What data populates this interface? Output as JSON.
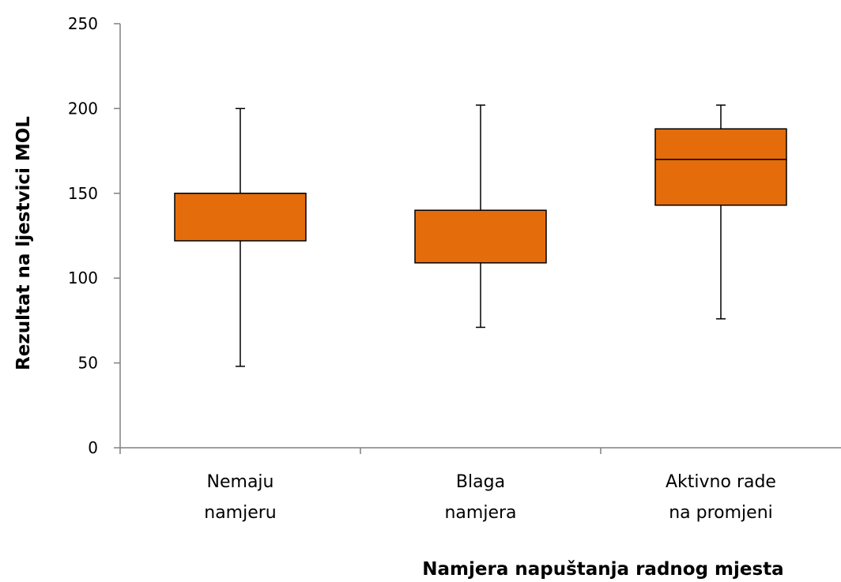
{
  "chart_data": {
    "type": "boxplot",
    "xlabel": "Namjera napuštanja radnog mjesta",
    "ylabel": "Rezultat na ljestvici MOL",
    "ylim": [
      0,
      250
    ],
    "yticks": [
      0,
      50,
      100,
      150,
      200,
      250
    ],
    "grid": false,
    "legend": "none",
    "box_color": "#E46C0A",
    "categories": [
      [
        "Nemaju",
        "namjeru"
      ],
      [
        "Blaga",
        "namjera"
      ],
      [
        "Aktivno rade",
        "na promjeni"
      ]
    ],
    "series": [
      {
        "min": 48,
        "q1": 122,
        "median": 150,
        "q3": 150,
        "max": 200
      },
      {
        "min": 71,
        "q1": 109,
        "median": 140,
        "q3": 140,
        "max": 202
      },
      {
        "min": 76,
        "q1": 143,
        "median": 170,
        "q3": 188,
        "max": 202
      }
    ]
  }
}
